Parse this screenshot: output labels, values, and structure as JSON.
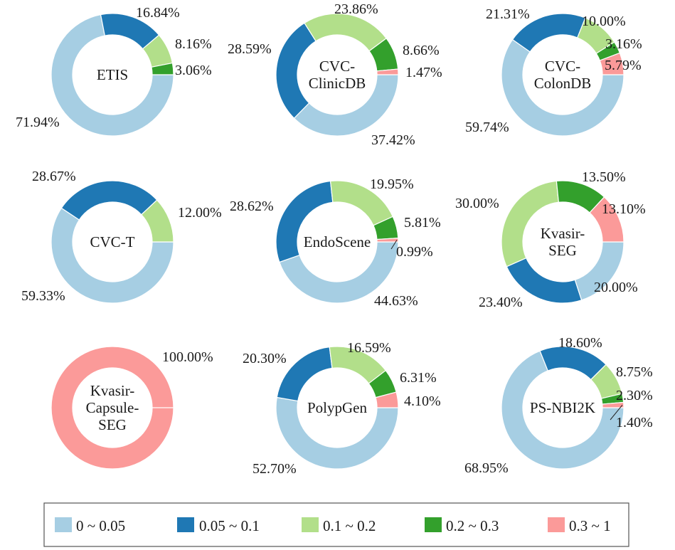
{
  "legend": [
    {
      "label": "0 ~ 0.05",
      "color": "#a6cee3"
    },
    {
      "label": "0.05 ~ 0.1",
      "color": "#1f78b4"
    },
    {
      "label": "0.1 ~ 0.2",
      "color": "#b2df8a"
    },
    {
      "label": "0.2 ~ 0.3",
      "color": "#33a02c"
    },
    {
      "label": "0.3 ~ 1",
      "color": "#fb9a99"
    }
  ],
  "chart_data": [
    {
      "type": "pie",
      "donut": true,
      "center_label": [
        "ETIS"
      ],
      "categories": [
        "0 ~ 0.05",
        "0.05 ~ 0.1",
        "0.1 ~ 0.2",
        "0.2 ~ 0.3",
        "0.3 ~ 1"
      ],
      "values": [
        71.94,
        16.84,
        8.16,
        3.06,
        0
      ],
      "labels": [
        "71.94%",
        "16.84%",
        "8.16%",
        "3.06%",
        ""
      ]
    },
    {
      "type": "pie",
      "donut": true,
      "center_label": [
        "CVC-",
        "ClinicDB"
      ],
      "categories": [
        "0 ~ 0.05",
        "0.05 ~ 0.1",
        "0.1 ~ 0.2",
        "0.2 ~ 0.3",
        "0.3 ~ 1"
      ],
      "values": [
        37.42,
        28.59,
        23.86,
        8.66,
        1.47
      ],
      "labels": [
        "37.42%",
        "28.59%",
        "23.86%",
        "8.66%",
        "1.47%"
      ]
    },
    {
      "type": "pie",
      "donut": true,
      "center_label": [
        "CVC-",
        "ColonDB"
      ],
      "categories": [
        "0 ~ 0.05",
        "0.05 ~ 0.1",
        "0.1 ~ 0.2",
        "0.2 ~ 0.3",
        "0.3 ~ 1"
      ],
      "values": [
        59.74,
        21.31,
        10.0,
        3.16,
        5.79
      ],
      "labels": [
        "59.74%",
        "21.31%",
        "10.00%",
        "3.16%",
        "5.79%"
      ]
    },
    {
      "type": "pie",
      "donut": true,
      "center_label": [
        "CVC-T"
      ],
      "categories": [
        "0 ~ 0.05",
        "0.05 ~ 0.1",
        "0.1 ~ 0.2",
        "0.2 ~ 0.3",
        "0.3 ~ 1"
      ],
      "values": [
        59.33,
        28.67,
        12.0,
        0,
        0
      ],
      "labels": [
        "59.33%",
        "28.67%",
        "12.00%",
        "",
        ""
      ]
    },
    {
      "type": "pie",
      "donut": true,
      "center_label": [
        "EndoScene"
      ],
      "categories": [
        "0 ~ 0.05",
        "0.05 ~ 0.1",
        "0.1 ~ 0.2",
        "0.2 ~ 0.3",
        "0.3 ~ 1"
      ],
      "values": [
        44.63,
        28.62,
        19.95,
        5.81,
        0.99
      ],
      "labels": [
        "44.63%",
        "28.62%",
        "19.95%",
        "5.81%",
        "0.99%"
      ]
    },
    {
      "type": "pie",
      "donut": true,
      "center_label": [
        "Kvasir-",
        "SEG"
      ],
      "categories": [
        "0 ~ 0.05",
        "0.05 ~ 0.1",
        "0.1 ~ 0.2",
        "0.2 ~ 0.3",
        "0.3 ~ 1"
      ],
      "values": [
        20.0,
        23.4,
        30.0,
        13.5,
        13.1
      ],
      "labels": [
        "20.00%",
        "23.40%",
        "30.00%",
        "13.50%",
        "13.10%"
      ]
    },
    {
      "type": "pie",
      "donut": true,
      "center_label": [
        "Kvasir-",
        "Capsule-",
        "SEG"
      ],
      "categories": [
        "0 ~ 0.05",
        "0.05 ~ 0.1",
        "0.1 ~ 0.2",
        "0.2 ~ 0.3",
        "0.3 ~ 1"
      ],
      "values": [
        0,
        0,
        0,
        0,
        100.0
      ],
      "labels": [
        "",
        "",
        "",
        "",
        "100.00%"
      ]
    },
    {
      "type": "pie",
      "donut": true,
      "center_label": [
        "PolypGen"
      ],
      "categories": [
        "0 ~ 0.05",
        "0.05 ~ 0.1",
        "0.1 ~ 0.2",
        "0.2 ~ 0.3",
        "0.3 ~ 1"
      ],
      "values": [
        52.7,
        20.3,
        16.59,
        6.31,
        4.1
      ],
      "labels": [
        "52.70%",
        "20.30%",
        "16.59%",
        "6.31%",
        "4.10%"
      ]
    },
    {
      "type": "pie",
      "donut": true,
      "center_label": [
        "PS-NBI2K"
      ],
      "categories": [
        "0 ~ 0.05",
        "0.05 ~ 0.1",
        "0.1 ~ 0.2",
        "0.2 ~ 0.3",
        "0.3 ~ 1"
      ],
      "values": [
        68.95,
        18.6,
        8.75,
        2.3,
        1.4
      ],
      "labels": [
        "68.95%",
        "18.60%",
        "8.75%",
        "2.30%",
        "1.40%"
      ]
    }
  ]
}
